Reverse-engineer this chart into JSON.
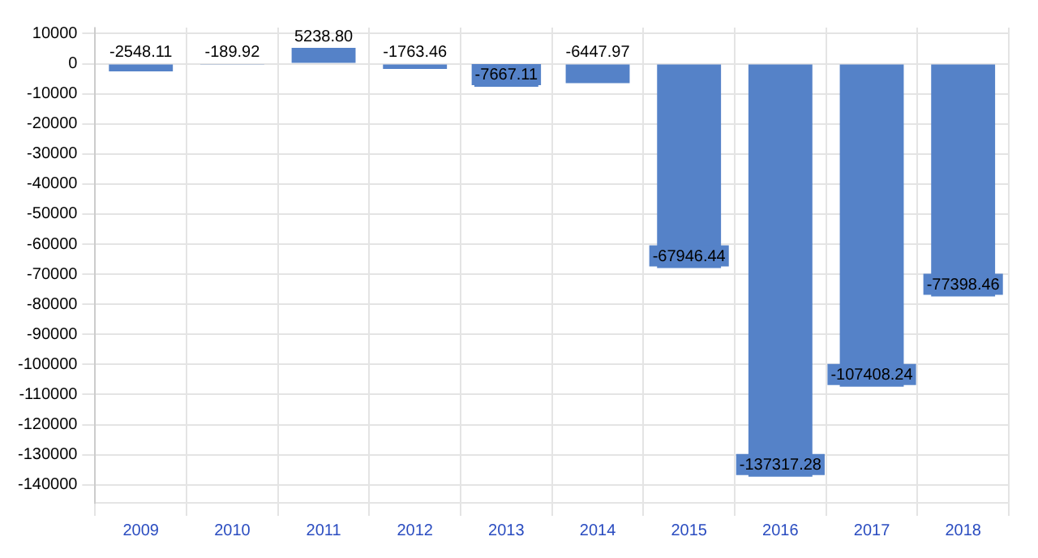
{
  "chart_data": {
    "type": "bar",
    "categories": [
      "2009",
      "2010",
      "2011",
      "2012",
      "2013",
      "2014",
      "2015",
      "2016",
      "2017",
      "2018"
    ],
    "values": [
      -2548.11,
      -189.92,
      5238.8,
      -1763.46,
      -7667.11,
      -6447.97,
      -67946.44,
      -137317.28,
      -107408.24,
      -77398.46
    ],
    "value_labels": [
      "-2548.11",
      "-189.92",
      "5238.80",
      "-1763.46",
      "-7667.11",
      "-6447.97",
      "-67946.44",
      "-137317.28",
      "-107408.24",
      "-77398.46"
    ],
    "color": "#5582c8",
    "ylim": [
      -146000,
      12000
    ],
    "yticks": [
      -140000,
      -130000,
      -120000,
      -110000,
      -100000,
      -90000,
      -80000,
      -70000,
      -60000,
      -50000,
      -40000,
      -30000,
      -20000,
      -10000,
      0,
      10000
    ],
    "grid": true,
    "legend": false
  }
}
